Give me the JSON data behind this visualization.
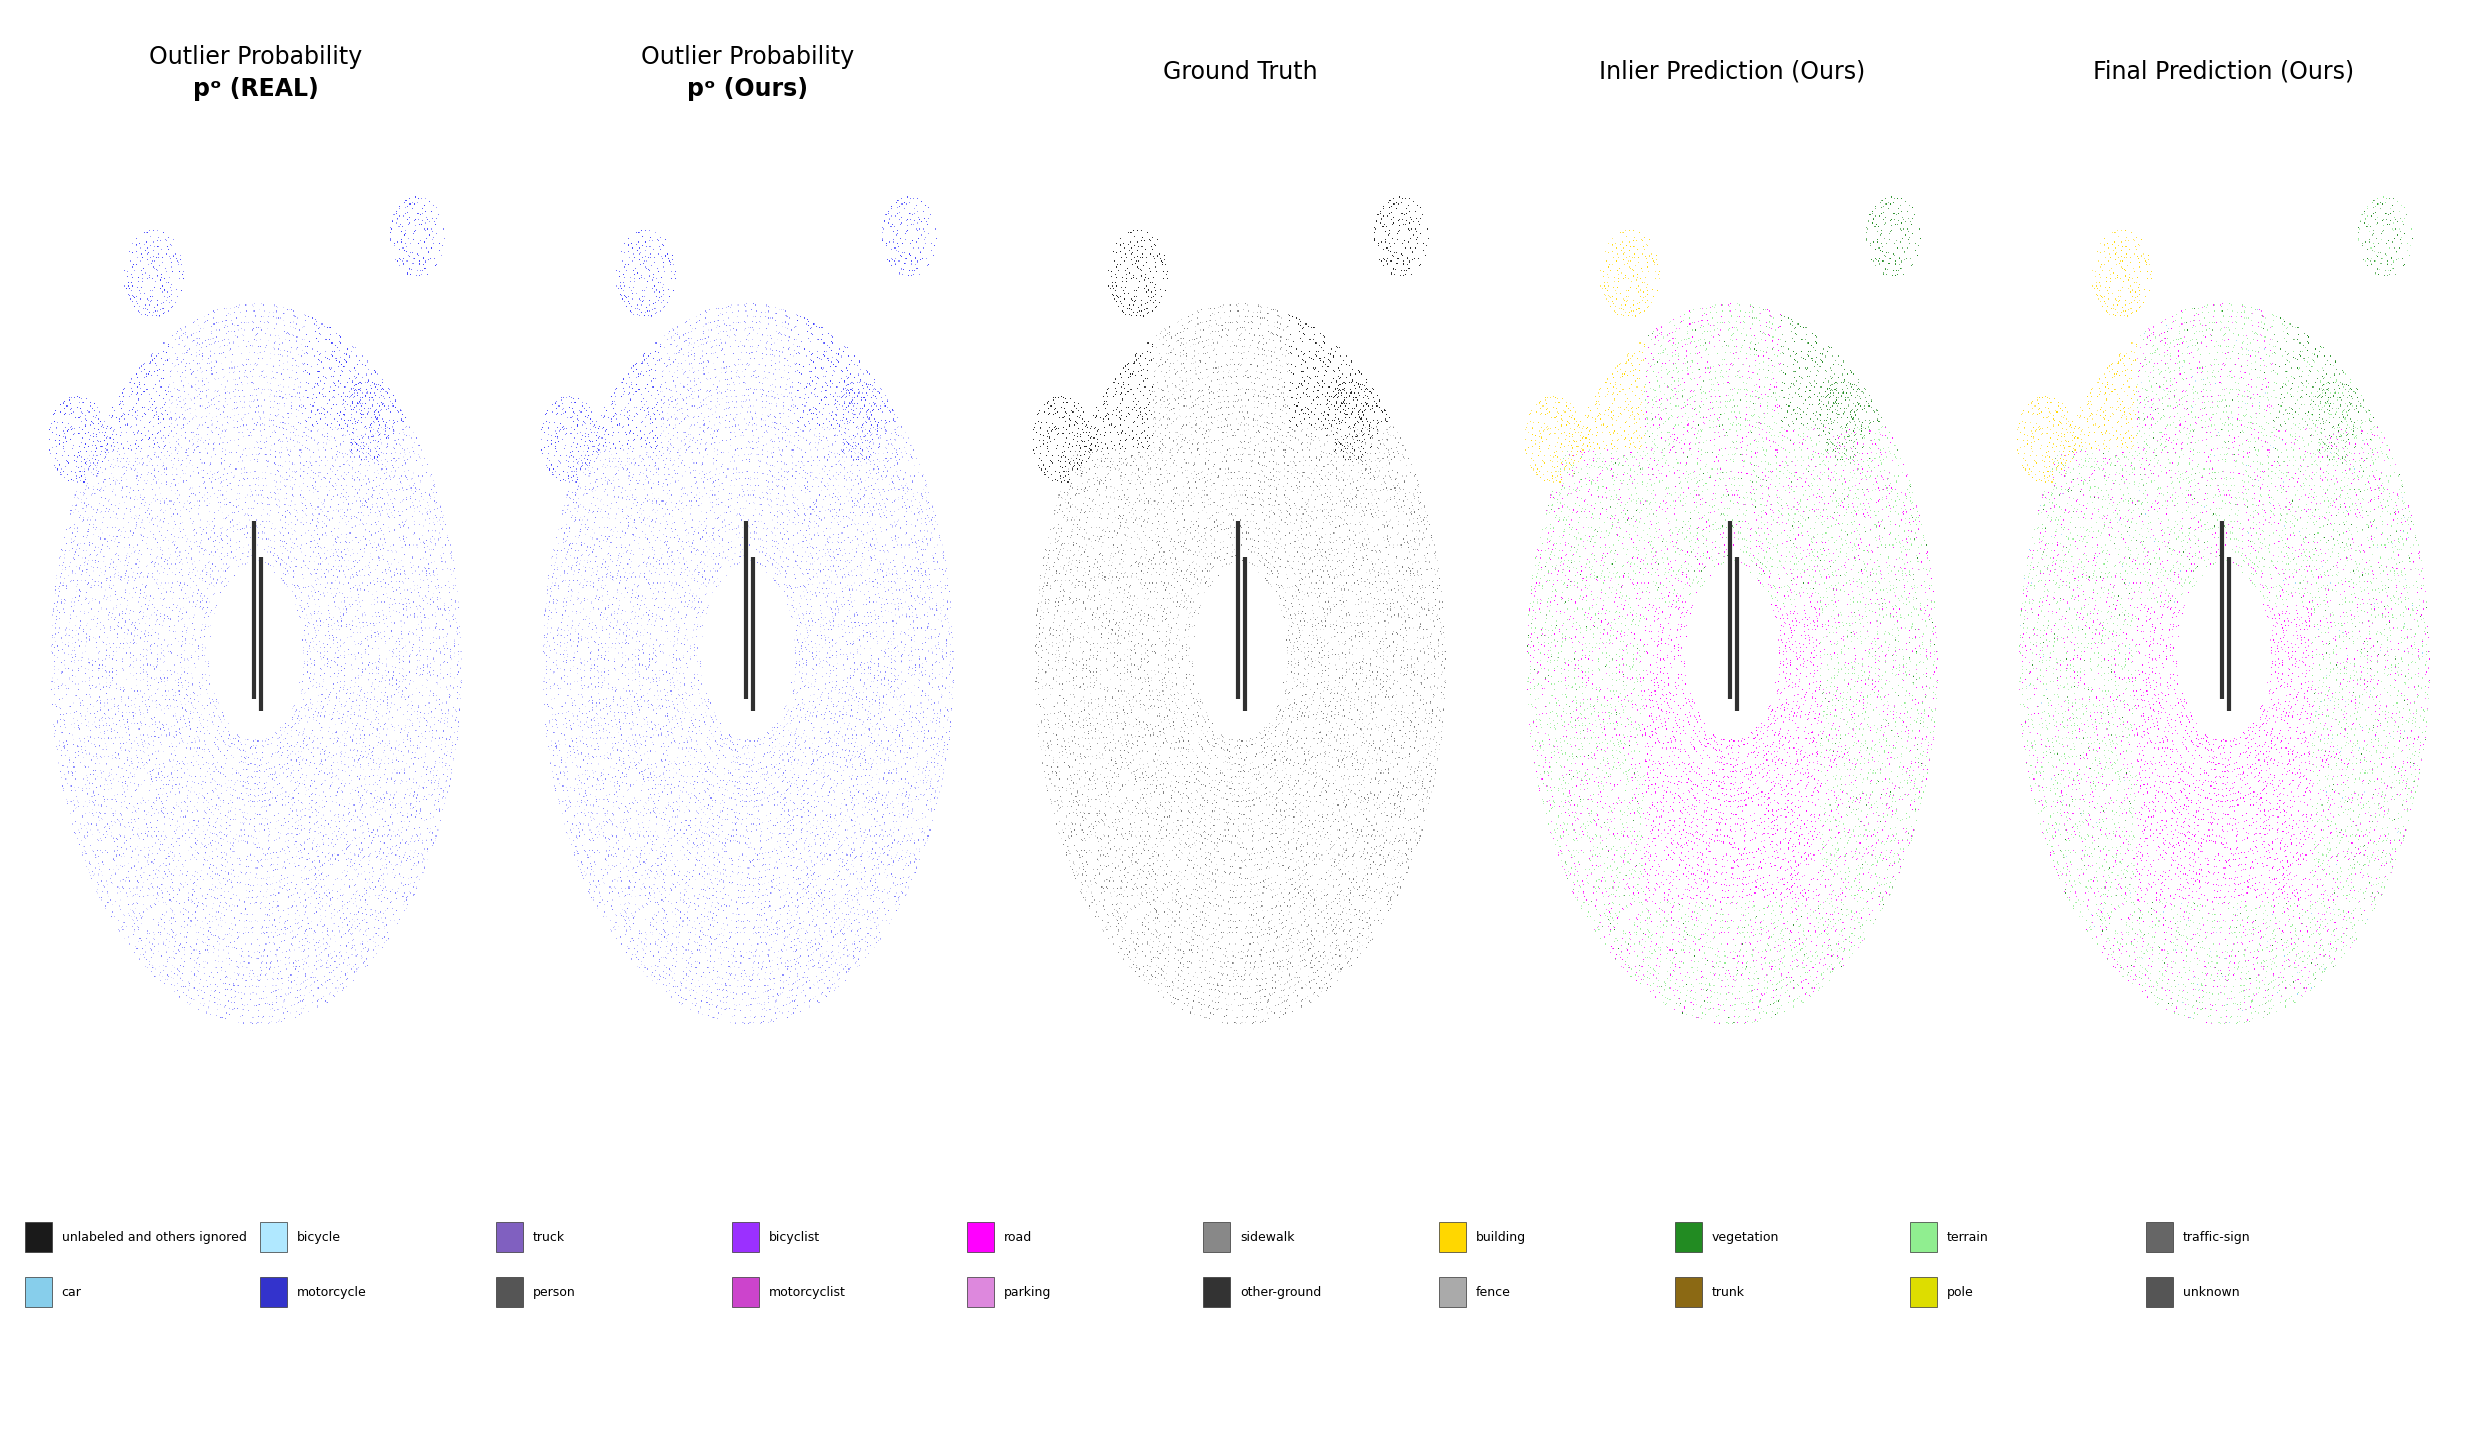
{
  "title_row1": [
    "Outlier Probability",
    "Outlier Probability",
    "Ground Truth",
    "Inlier Prediction (Ours)",
    "Final Prediction (Ours)"
  ],
  "title_row2": [
    "pᵒ (REAL)",
    "pᵒ (Ours)",
    "",
    "",
    ""
  ],
  "background_color": "#ffffff",
  "title_fontsize": 17,
  "legend_items_row1": [
    {
      "label": "unlabeled and others ignored",
      "color": "#1a1a1a"
    },
    {
      "label": "bicycle",
      "color": "#b0e8ff"
    },
    {
      "label": "truck",
      "color": "#8060c0"
    },
    {
      "label": "bicyclist",
      "color": "#9b30ff"
    },
    {
      "label": "road",
      "color": "#ff00ff"
    },
    {
      "label": "sidewalk",
      "color": "#888888"
    },
    {
      "label": "building",
      "color": "#ffd700"
    },
    {
      "label": "vegetation",
      "color": "#228b22"
    },
    {
      "label": "terrain",
      "color": "#90ee90"
    },
    {
      "label": "traffic-sign",
      "color": "#666666"
    }
  ],
  "legend_items_row2": [
    {
      "label": "car",
      "color": "#87ceeb"
    },
    {
      "label": "motorcycle",
      "color": "#3333cc"
    },
    {
      "label": "person",
      "color": "#555555"
    },
    {
      "label": "motorcyclist",
      "color": "#cc44cc"
    },
    {
      "label": "parking",
      "color": "#dd88dd"
    },
    {
      "label": "other-ground",
      "color": "#333333"
    },
    {
      "label": "fence",
      "color": "#aaaaaa"
    },
    {
      "label": "trunk",
      "color": "#8b6914"
    },
    {
      "label": "pole",
      "color": "#dddd00"
    },
    {
      "label": "unknown",
      "color": "#555555"
    }
  ],
  "num_panels": 5,
  "seed": 42
}
